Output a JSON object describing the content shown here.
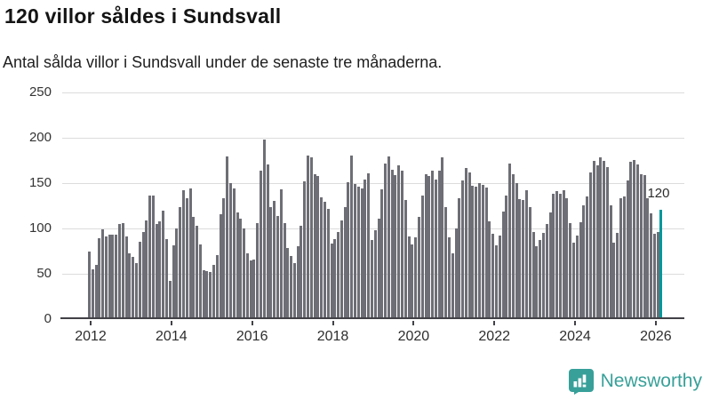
{
  "header": {
    "title": "120 villor såldes i Sundsvall",
    "subtitle": "Antal sålda villor i Sundsvall under de senaste tre månaderna."
  },
  "chart_data": {
    "type": "bar",
    "title": "120 villor såldes i Sundsvall",
    "xlabel": "",
    "ylabel": "",
    "x_unit": "month",
    "x_range": "2012-01 to 2026-03",
    "ylim": [
      0,
      250
    ],
    "y_ticks": [
      0,
      50,
      100,
      150,
      200,
      250
    ],
    "x_tick_labels": [
      "2012",
      "2014",
      "2016",
      "2018",
      "2020",
      "2022",
      "2024",
      "2026"
    ],
    "grid": "horizontal",
    "bar_color": "#6E6E76",
    "values": [
      74,
      54,
      59,
      88,
      98,
      90,
      92,
      92,
      92,
      104,
      105,
      90,
      72,
      68,
      61,
      84,
      95,
      108,
      135,
      135,
      104,
      107,
      119,
      87,
      41,
      80,
      99,
      123,
      141,
      132,
      143,
      112,
      102,
      81,
      53,
      52,
      51,
      59,
      70,
      115,
      132,
      178,
      149,
      143,
      117,
      110,
      99,
      72,
      64,
      65,
      105,
      163,
      197,
      170,
      123,
      129,
      113,
      142,
      105,
      77,
      69,
      61,
      79,
      102,
      151,
      179,
      177,
      159,
      157,
      133,
      128,
      121,
      82,
      87,
      95,
      108,
      123,
      150,
      179,
      148,
      145,
      143,
      153,
      160,
      86,
      97,
      110,
      142,
      171,
      178,
      164,
      158,
      169,
      163,
      130,
      90,
      81,
      89,
      112,
      135,
      159,
      157,
      163,
      153,
      163,
      177,
      123,
      89,
      72,
      99,
      132,
      152,
      166,
      161,
      146,
      145,
      149,
      147,
      144,
      107,
      93,
      80,
      91,
      118,
      135,
      171,
      159,
      149,
      131,
      130,
      141,
      123,
      95,
      79,
      86,
      94,
      104,
      117,
      137,
      140,
      137,
      141,
      132,
      105,
      83,
      91,
      106,
      125,
      134,
      161,
      174,
      169,
      177,
      174,
      167,
      125,
      83,
      94,
      132,
      134,
      152,
      173,
      175,
      170,
      159,
      158,
      132,
      116,
      93,
      95,
      120
    ],
    "highlight": {
      "position": "last",
      "value": 120,
      "label": "120",
      "color": "#00989B"
    }
  },
  "footer": {
    "brand": "Newsworthy",
    "brand_color": "#38A099"
  }
}
